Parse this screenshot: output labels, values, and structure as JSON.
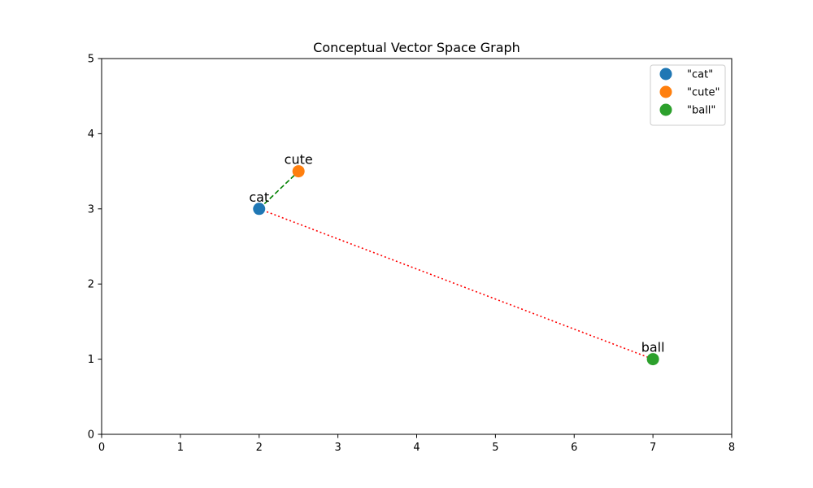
{
  "chart_data": {
    "type": "scatter",
    "title": "Conceptual Vector Space Graph",
    "xlabel": "",
    "ylabel": "",
    "xlim": [
      0,
      8
    ],
    "ylim": [
      0,
      5
    ],
    "xticks": [
      0,
      1,
      2,
      3,
      4,
      5,
      6,
      7,
      8
    ],
    "yticks": [
      0,
      1,
      2,
      3,
      4,
      5
    ],
    "grid": false,
    "legend_position": "top-right",
    "series": [
      {
        "name": "\"cat\"",
        "label": "cat",
        "x": 2,
        "y": 3,
        "color": "#1f77b4"
      },
      {
        "name": "\"cute\"",
        "label": "cute",
        "x": 2.5,
        "y": 3.5,
        "color": "#ff7f0e"
      },
      {
        "name": "\"ball\"",
        "label": "ball",
        "x": 7,
        "y": 1,
        "color": "#2ca02c"
      }
    ],
    "connections": [
      {
        "from": [
          2,
          3
        ],
        "to": [
          2.5,
          3.5
        ],
        "color": "#008000",
        "style": "dashed"
      },
      {
        "from": [
          2,
          3
        ],
        "to": [
          7,
          1
        ],
        "color": "#ff0000",
        "style": "dotted"
      }
    ]
  }
}
